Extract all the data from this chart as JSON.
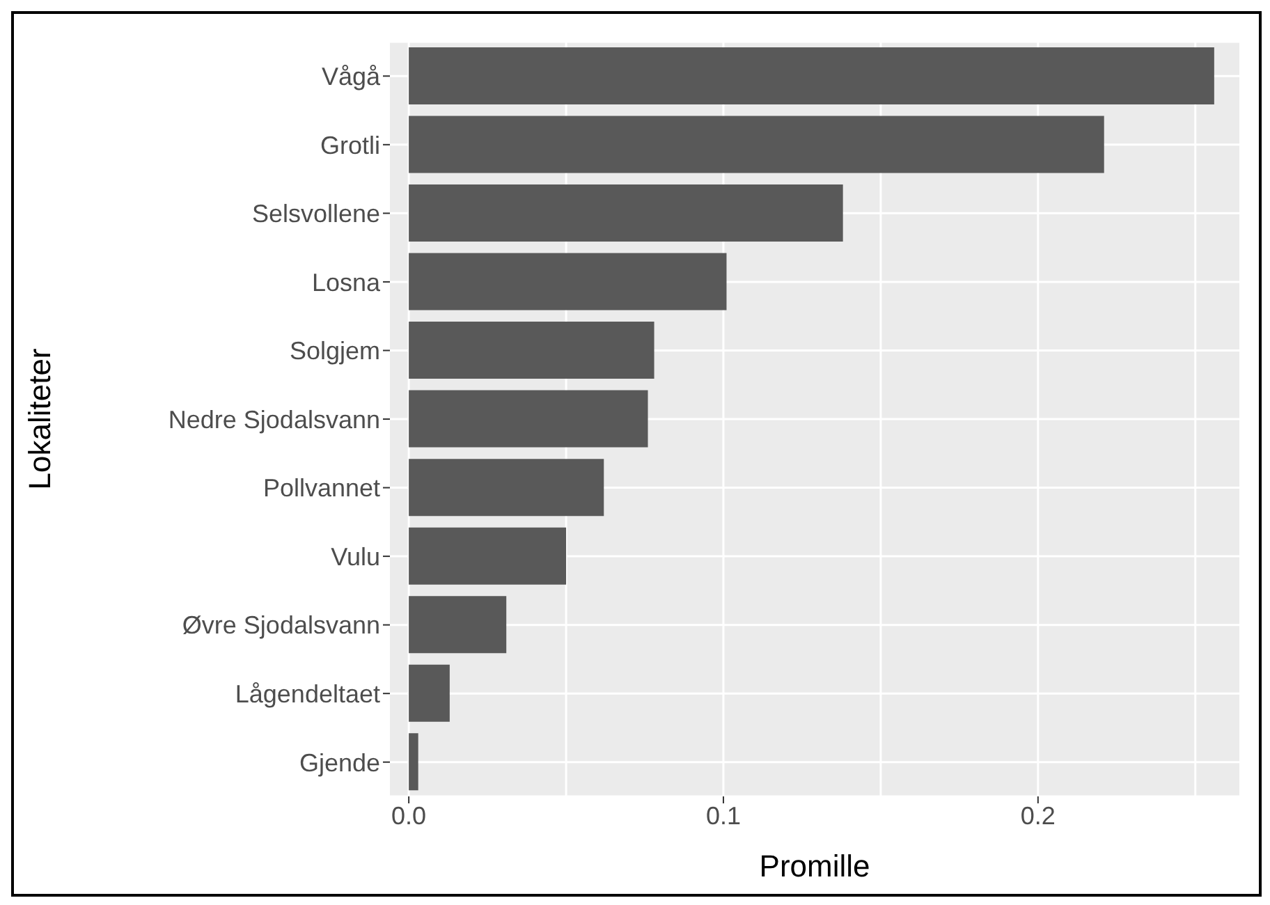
{
  "chart_data": {
    "type": "bar",
    "orientation": "horizontal",
    "xlabel": "Promille",
    "ylabel": "Lokaliteter",
    "categories": [
      "Vågå",
      "Grotli",
      "Selsvollene",
      "Losna",
      "Solgjem",
      "Nedre Sjodalsvann",
      "Pollvannet",
      "Vulu",
      "Øvre Sjodalsvann",
      "Lågendeltaet",
      "Gjende"
    ],
    "values": [
      0.256,
      0.221,
      0.138,
      0.101,
      0.078,
      0.076,
      0.062,
      0.05,
      0.031,
      0.013,
      0.003
    ],
    "color": "#595959",
    "xlim": [
      -0.006,
      0.264
    ],
    "xticks": [
      {
        "value": 0,
        "label": "0.0"
      },
      {
        "value": 0.05,
        "label": null
      },
      {
        "value": 0.1,
        "label": "0.1"
      },
      {
        "value": 0.15,
        "label": null
      },
      {
        "value": 0.2,
        "label": "0.2"
      },
      {
        "value": 0.25,
        "label": null
      }
    ],
    "grid": true
  }
}
